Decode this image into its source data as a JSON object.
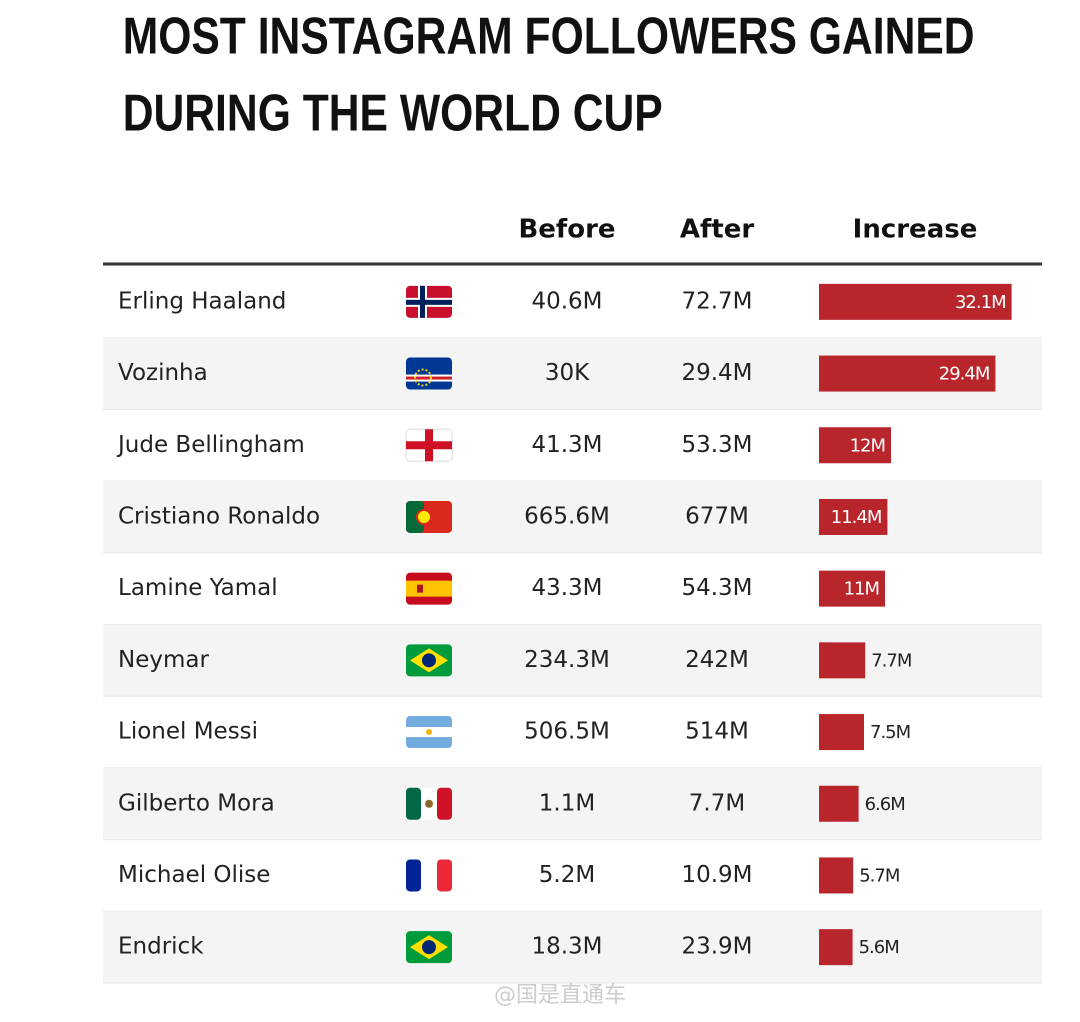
{
  "chart_data": {
    "type": "table-bar",
    "title_lines": [
      "MOST INSTAGRAM FOLLOWERS GAINED",
      "DURING THE WORLD CUP"
    ],
    "columns": [
      "Before",
      "After",
      "Increase"
    ],
    "categories": [
      "Erling Haaland",
      "Vozinha",
      "Jude Bellingham",
      "Cristiano Ronaldo",
      "Lamine Yamal",
      "Neymar",
      "Lionel Messi",
      "Gilberto Mora",
      "Michael Olise",
      "Endrick"
    ],
    "before": [
      "40.6M",
      "30K",
      "41.3M",
      "665.6M",
      "43.3M",
      "234.3M",
      "506.5M",
      "1.1M",
      "5.2M",
      "18.3M"
    ],
    "after": [
      "72.7M",
      "29.4M",
      "53.3M",
      "677M",
      "54.3M",
      "242M",
      "514M",
      "7.7M",
      "10.9M",
      "23.9M"
    ],
    "values": [
      32.1,
      29.4,
      12,
      11.4,
      11,
      7.7,
      7.5,
      6.6,
      5.7,
      5.6
    ],
    "value_labels": [
      "32.1M",
      "29.4M",
      "12M",
      "11.4M",
      "11M",
      "7.7M",
      "7.5M",
      "6.6M",
      "5.7M",
      "5.6M"
    ],
    "color": "#b8262c",
    "watermark": "@国是直通车"
  }
}
